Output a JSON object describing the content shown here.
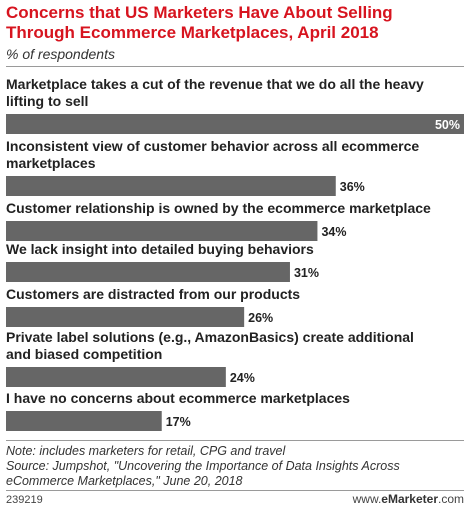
{
  "chart_data": {
    "type": "bar",
    "orientation": "horizontal",
    "title": "Concerns that US Marketers Have About Selling Through Ecommerce Marketplaces, April 2018",
    "subtitle": "% of respondents",
    "categories": [
      "Marketplace takes a cut of the revenue that we do all the heavy lifting to sell",
      "Inconsistent view of customer behavior across all ecommerce marketplaces",
      "Customer relationship is owned by the ecommerce marketplace",
      "We lack insight into detailed buying behaviors",
      "Customers are distracted from our products",
      "Private label solutions (e.g., AmazonBasics) create additional and biased competition",
      "I have no concerns about ecommerce marketplaces"
    ],
    "values": [
      50,
      36,
      34,
      31,
      26,
      24,
      17
    ],
    "value_labels": [
      "50%",
      "36%",
      "34%",
      "31%",
      "26%",
      "24%",
      "17%"
    ],
    "xlim": [
      0,
      50
    ],
    "bar_color": "#666666",
    "grid": false,
    "legend": "none"
  },
  "footer": {
    "note": "Note: includes marketers for retail, CPG and travel",
    "source": "Source: Jumpshot, \"Uncovering the Importance of Data Insights Across eCommerce Marketplaces,\" June 20, 2018",
    "chart_id": "239219",
    "brand_prefix": "www.",
    "brand_name": "eMarketer",
    "brand_suffix": ".com"
  },
  "colors": {
    "title": "#d7141f",
    "bar": "#666666"
  }
}
